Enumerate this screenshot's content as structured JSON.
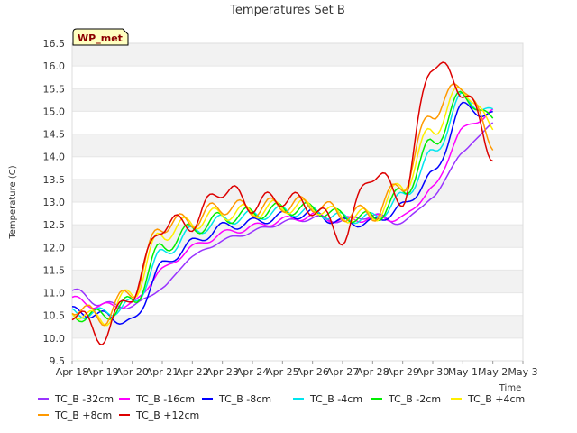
{
  "chart_data": {
    "type": "line",
    "title": "Temperatures Set B",
    "xlabel": "Time",
    "ylabel": "Temperature (C)",
    "badge": "WP_met",
    "ylim": [
      9.5,
      16.5
    ],
    "yticks": [
      "9.5",
      "10.0",
      "10.5",
      "11.0",
      "11.5",
      "12.0",
      "12.5",
      "13.0",
      "13.5",
      "14.0",
      "14.5",
      "15.0",
      "15.5",
      "16.0",
      "16.5"
    ],
    "xlim": [
      "Apr 18",
      "May 3"
    ],
    "xticks": [
      "Apr 18",
      "Apr 19",
      "Apr 20",
      "Apr 21",
      "Apr 22",
      "Apr 23",
      "Apr 24",
      "Apr 25",
      "Apr 26",
      "Apr 27",
      "Apr 28",
      "Apr 29",
      "Apr 30",
      "May 1",
      "May 2",
      "May 3"
    ],
    "grid": "horizontal bands",
    "legend_position": "bottom",
    "x": [
      "Apr 18",
      "Apr 19",
      "Apr 20",
      "Apr 21",
      "Apr 22",
      "Apr 23",
      "Apr 24",
      "Apr 25",
      "Apr 26",
      "Apr 27",
      "Apr 28",
      "Apr 29",
      "Apr 30",
      "May 1",
      "May 2"
    ],
    "series": [
      {
        "name": "TC_B -32cm",
        "color": "#9933ff",
        "values": [
          11.05,
          10.75,
          10.7,
          11.1,
          11.8,
          12.15,
          12.35,
          12.55,
          12.65,
          12.6,
          12.7,
          12.55,
          13.1,
          14.1,
          14.75
        ]
      },
      {
        "name": "TC_B -16cm",
        "color": "#ff00ff",
        "values": [
          10.85,
          10.7,
          10.75,
          11.5,
          12.0,
          12.3,
          12.45,
          12.6,
          12.7,
          12.6,
          12.65,
          12.65,
          13.3,
          14.6,
          15.0
        ]
      },
      {
        "name": "TC_B -8cm",
        "color": "#0000ff",
        "values": [
          10.6,
          10.5,
          10.35,
          11.6,
          12.1,
          12.45,
          12.55,
          12.7,
          12.75,
          12.55,
          12.55,
          12.9,
          13.6,
          15.1,
          14.9
        ]
      },
      {
        "name": "TC_B -4cm",
        "color": "#00e5ee",
        "values": [
          10.55,
          10.55,
          10.75,
          11.85,
          12.35,
          12.6,
          12.7,
          12.8,
          12.8,
          12.65,
          12.65,
          13.1,
          14.05,
          15.3,
          14.95
        ]
      },
      {
        "name": "TC_B -2cm",
        "color": "#00ee00",
        "values": [
          10.5,
          10.5,
          10.8,
          12.0,
          12.4,
          12.65,
          12.75,
          12.85,
          12.85,
          12.7,
          12.65,
          13.2,
          14.3,
          15.35,
          14.8
        ]
      },
      {
        "name": "TC_B +4cm",
        "color": "#ffee00",
        "values": [
          10.6,
          10.4,
          11.0,
          12.3,
          12.55,
          12.75,
          12.8,
          12.9,
          12.9,
          12.7,
          12.7,
          13.35,
          14.6,
          15.5,
          14.65
        ]
      },
      {
        "name": "TC_B +8cm",
        "color": "#ff9900",
        "values": [
          10.7,
          10.45,
          11.05,
          12.5,
          12.6,
          12.9,
          12.85,
          12.95,
          12.95,
          12.75,
          12.75,
          13.4,
          15.0,
          15.6,
          14.3
        ]
      },
      {
        "name": "TC_B +12cm",
        "color": "#dd0000",
        "values": [
          10.6,
          10.05,
          11.0,
          12.5,
          12.55,
          13.3,
          12.95,
          13.1,
          12.9,
          12.25,
          13.65,
          13.1,
          16.1,
          15.5,
          14.1
        ]
      }
    ]
  }
}
